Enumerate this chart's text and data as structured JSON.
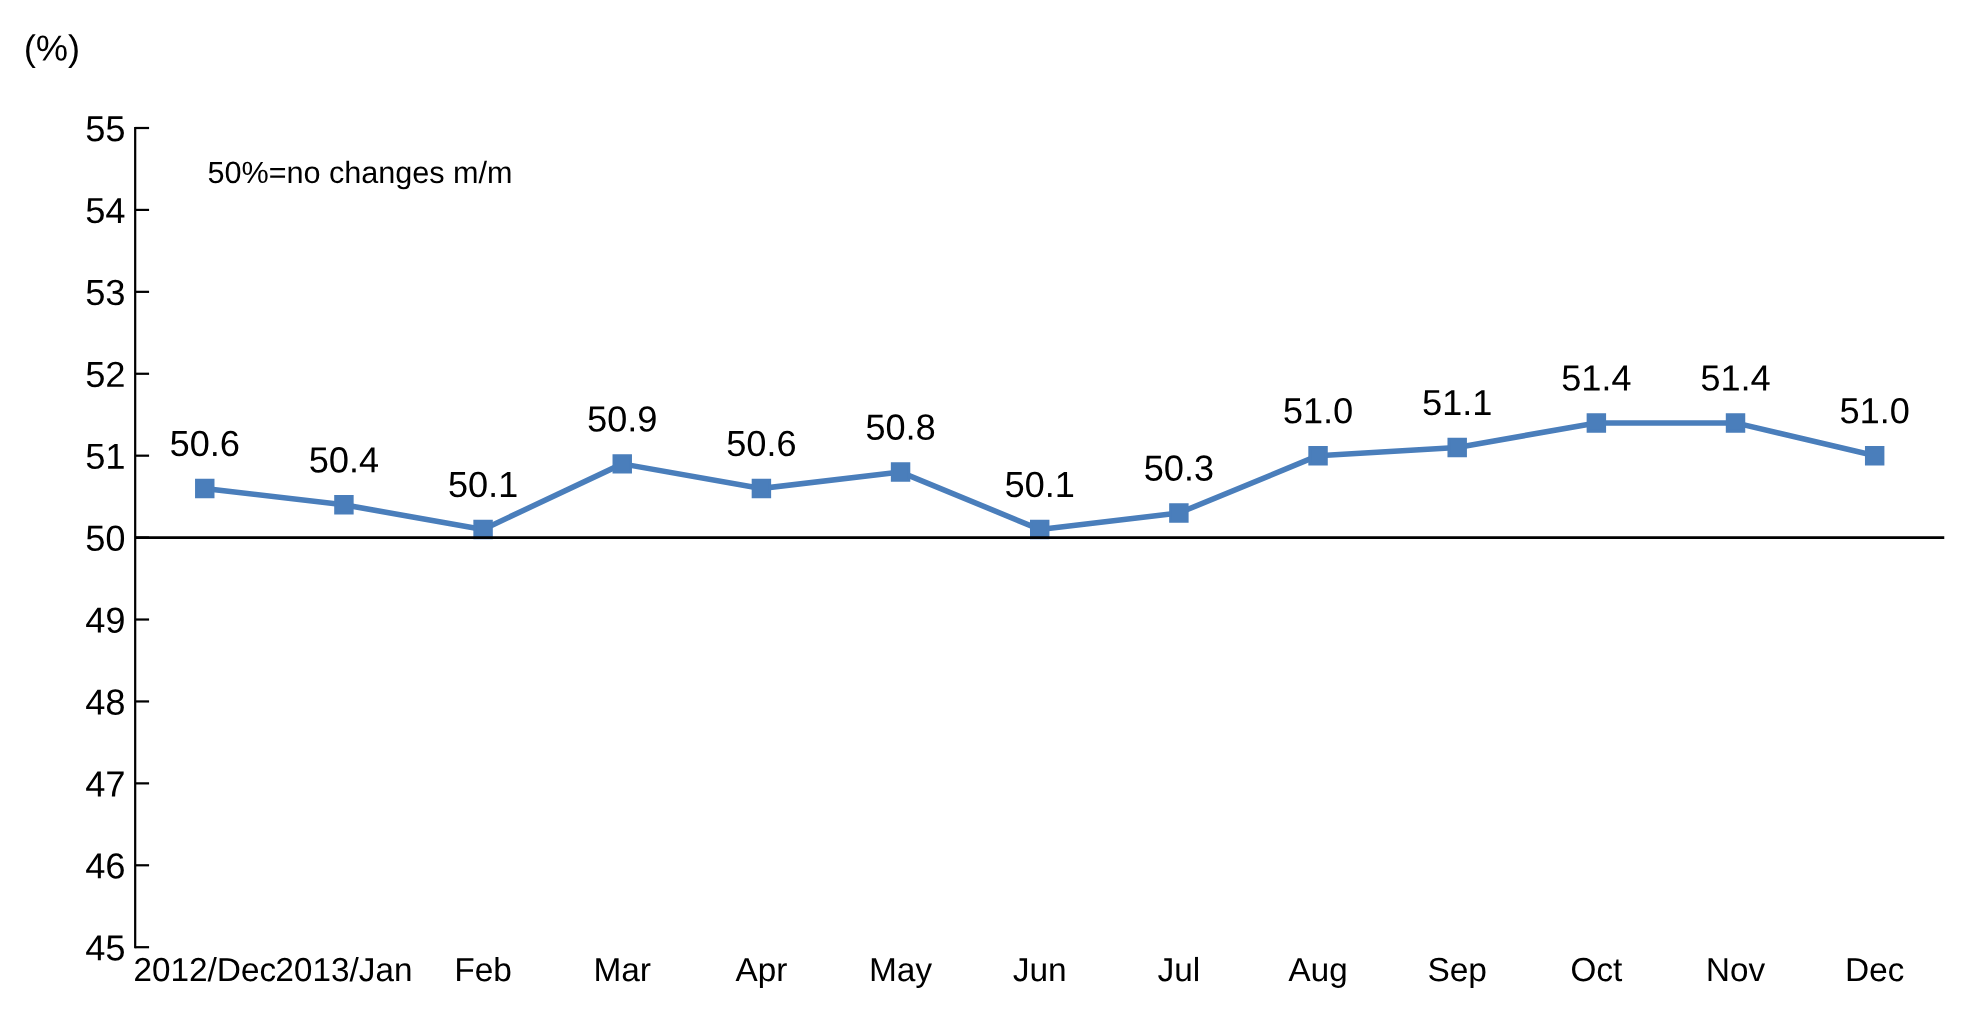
{
  "chart_data": {
    "type": "line",
    "ylabel": "(%)",
    "categories": [
      "2012/Dec",
      "2013/Jan",
      "Feb",
      "Mar",
      "Apr",
      "May",
      "Jun",
      "Jul",
      "Aug",
      "Sep",
      "Oct",
      "Nov",
      "Dec"
    ],
    "series": [
      {
        "color": "#4a7ebb",
        "values": [
          50.6,
          50.4,
          50.1,
          50.9,
          50.6,
          50.8,
          50.1,
          50.3,
          51.0,
          51.1,
          51.4,
          51.4,
          51.0
        ],
        "value_labels": [
          "50.6",
          "50.4",
          "50.1",
          "50.9",
          "50.6",
          "50.8",
          "50.1",
          "50.3",
          "51.0",
          "51.1",
          "51.4",
          "51.4",
          "51.0"
        ]
      }
    ],
    "ylim": [
      45,
      55
    ],
    "yticks": [
      45,
      46,
      47,
      48,
      49,
      50,
      51,
      52,
      53,
      54,
      55
    ],
    "ref_lines": [
      {
        "axis": "y",
        "value": 50,
        "color": "#000000"
      }
    ],
    "annotations": [
      "50%=no changes m/m"
    ],
    "marker": "square",
    "line_style": "solid",
    "grid": false,
    "legend": false
  }
}
